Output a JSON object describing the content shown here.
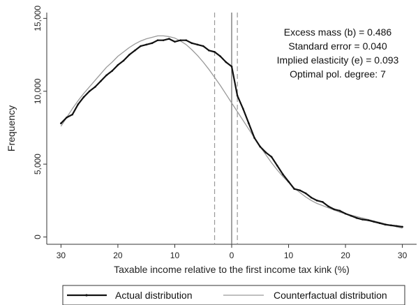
{
  "chart_data": {
    "type": "line",
    "title": "",
    "xlabel": "Taxable income relative to the first income tax kink (%)",
    "ylabel": "Frequency",
    "xlim": [
      -32.5,
      32.5
    ],
    "ylim": [
      -500,
      15400
    ],
    "xticks": [
      -30,
      -20,
      -10,
      0,
      10,
      20,
      30
    ],
    "xtick_labels": [
      "30",
      "20",
      "10",
      "0",
      "10",
      "20",
      "30"
    ],
    "yticks": [
      0,
      5000,
      10000,
      15000
    ],
    "ytick_labels": [
      "0",
      "5,000",
      "10,000",
      "15,000"
    ],
    "vlines": [
      {
        "x": 0,
        "style": "solid",
        "color": "#666666"
      },
      {
        "x": -3,
        "style": "dashed",
        "color": "#999999"
      },
      {
        "x": 1,
        "style": "dashed",
        "color": "#999999"
      }
    ],
    "annotations": [
      "Excess mass (b) = 0.486",
      "Standard error = 0.040",
      "Implied elasticity (e) = 0.093",
      "Optimal pol. degree: 7"
    ],
    "legend_position": "bottom",
    "series": [
      {
        "name": "Actual distribution",
        "color": "#111111",
        "x": [
          -30,
          -29,
          -28,
          -27,
          -26,
          -25,
          -24,
          -23,
          -22,
          -21,
          -20,
          -19,
          -18,
          -17,
          -16,
          -15,
          -14,
          -13,
          -12,
          -11,
          -10,
          -9,
          -8,
          -7,
          -6,
          -5,
          -4,
          -3,
          -2,
          -1,
          0,
          1,
          2,
          3,
          4,
          5,
          6,
          7,
          8,
          9,
          10,
          11,
          12,
          13,
          14,
          15,
          16,
          17,
          18,
          19,
          20,
          21,
          22,
          23,
          24,
          25,
          26,
          27,
          28,
          29,
          30
        ],
        "y": [
          7800,
          8200,
          8400,
          9100,
          9600,
          10000,
          10300,
          10700,
          11100,
          11400,
          11800,
          12100,
          12500,
          12800,
          13100,
          13200,
          13300,
          13500,
          13500,
          13600,
          13400,
          13500,
          13500,
          13300,
          13200,
          13100,
          12800,
          12700,
          12400,
          12000,
          11700,
          9700,
          8800,
          7800,
          6800,
          6200,
          5800,
          5500,
          4900,
          4300,
          3800,
          3300,
          3200,
          3000,
          2700,
          2500,
          2400,
          2100,
          1900,
          1800,
          1600,
          1450,
          1300,
          1200,
          1150,
          1050,
          950,
          850,
          800,
          750,
          700
        ]
      },
      {
        "name": "Counterfactual distribution",
        "color": "#999999",
        "x": [
          -30,
          -29,
          -28,
          -27,
          -26,
          -25,
          -24,
          -23,
          -22,
          -21,
          -20,
          -19,
          -18,
          -17,
          -16,
          -15,
          -14,
          -13,
          -12,
          -11,
          -10,
          -9,
          -8,
          -7,
          -6,
          -5,
          -4,
          -3,
          -2,
          -1,
          0,
          1,
          2,
          3,
          4,
          5,
          6,
          7,
          8,
          9,
          10,
          11,
          12,
          13,
          14,
          15,
          16,
          17,
          18,
          19,
          20,
          21,
          22,
          23,
          24,
          25,
          26,
          27,
          28,
          29,
          30
        ],
        "y": [
          7600,
          8200,
          8800,
          9350,
          9850,
          10300,
          10750,
          11200,
          11650,
          12000,
          12400,
          12700,
          13000,
          13250,
          13450,
          13600,
          13700,
          13800,
          13800,
          13750,
          13650,
          13450,
          13200,
          12850,
          12450,
          12000,
          11500,
          10950,
          10400,
          9800,
          9200,
          8600,
          8000,
          7400,
          6800,
          6200,
          5650,
          5100,
          4600,
          4150,
          3750,
          3350,
          3050,
          2750,
          2500,
          2300,
          2150,
          2000,
          1850,
          1700,
          1600,
          1500,
          1400,
          1300,
          1200,
          1100,
          1000,
          900,
          800,
          700,
          600
        ]
      }
    ]
  }
}
